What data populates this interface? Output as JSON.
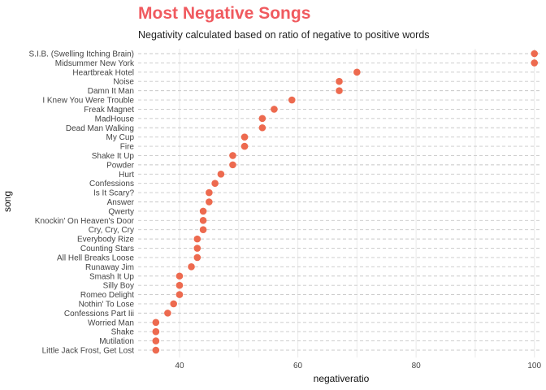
{
  "colors": {
    "title": "#f05a5f",
    "point": "#ed6a4f",
    "grid_major": "#c8c8c8",
    "grid_minor": "#ececec"
  },
  "chart_data": {
    "type": "scatter",
    "title": "Most Negative Songs",
    "subtitle": "Negativity calculated based on ratio of negative to positive words",
    "xlabel": "negativeratio",
    "ylabel": "song",
    "xlim": [
      33,
      101
    ],
    "xticks": [
      40,
      60,
      80,
      100
    ],
    "grid": true,
    "grid_style": "dashed horizontal",
    "legend": "none",
    "points": [
      {
        "song": "S.I.B. (Swelling Itching Brain)",
        "value": 100
      },
      {
        "song": "Midsummer New York",
        "value": 100
      },
      {
        "song": "Heartbreak Hotel",
        "value": 70
      },
      {
        "song": "Noise",
        "value": 67
      },
      {
        "song": "Damn It Man",
        "value": 67
      },
      {
        "song": "I Knew You Were Trouble",
        "value": 59
      },
      {
        "song": "Freak Magnet",
        "value": 56
      },
      {
        "song": "MadHouse",
        "value": 54
      },
      {
        "song": "Dead Man Walking",
        "value": 54
      },
      {
        "song": "My Cup",
        "value": 51
      },
      {
        "song": "Fire",
        "value": 51
      },
      {
        "song": "Shake It Up",
        "value": 49
      },
      {
        "song": "Powder",
        "value": 49
      },
      {
        "song": "Hurt",
        "value": 47
      },
      {
        "song": "Confessions",
        "value": 46
      },
      {
        "song": "Is It Scary?",
        "value": 45
      },
      {
        "song": "Answer",
        "value": 45
      },
      {
        "song": "Qwerty",
        "value": 44
      },
      {
        "song": "Knockin' On Heaven's Door",
        "value": 44
      },
      {
        "song": "Cry, Cry, Cry",
        "value": 44
      },
      {
        "song": "Everybody Rize",
        "value": 43
      },
      {
        "song": "Counting Stars",
        "value": 43
      },
      {
        "song": "All Hell Breaks Loose",
        "value": 43
      },
      {
        "song": "Runaway Jim",
        "value": 42
      },
      {
        "song": "Smash It Up",
        "value": 40
      },
      {
        "song": "Silly Boy",
        "value": 40
      },
      {
        "song": "Romeo Delight",
        "value": 40
      },
      {
        "song": "Nothin' To Lose",
        "value": 39
      },
      {
        "song": "Confessions Part Iii",
        "value": 38
      },
      {
        "song": "Worried Man",
        "value": 36
      },
      {
        "song": "Shake",
        "value": 36
      },
      {
        "song": "Mutilation",
        "value": 36
      },
      {
        "song": "Little Jack Frost, Get Lost",
        "value": 36
      }
    ]
  }
}
